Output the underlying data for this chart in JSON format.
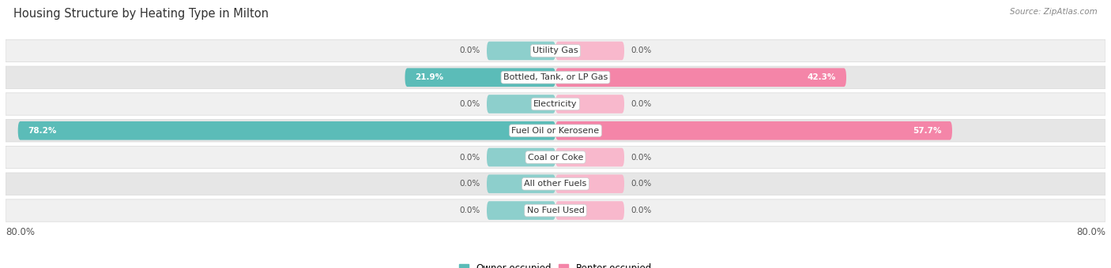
{
  "title": "Housing Structure by Heating Type in Milton",
  "source": "Source: ZipAtlas.com",
  "categories": [
    "Utility Gas",
    "Bottled, Tank, or LP Gas",
    "Electricity",
    "Fuel Oil or Kerosene",
    "Coal or Coke",
    "All other Fuels",
    "No Fuel Used"
  ],
  "owner_values": [
    0.0,
    21.9,
    0.0,
    78.2,
    0.0,
    0.0,
    0.0
  ],
  "renter_values": [
    0.0,
    42.3,
    0.0,
    57.7,
    0.0,
    0.0,
    0.0
  ],
  "owner_color": "#5bbcb8",
  "renter_color": "#f485a8",
  "stub_owner_color": "#8dcfcc",
  "stub_renter_color": "#f8b8cc",
  "row_bg_even": "#f0f0f0",
  "row_bg_odd": "#e6e6e6",
  "row_border": "#d8d8d8",
  "xlim": 80.0,
  "stub_size": 10.0,
  "title_fontsize": 10.5,
  "source_fontsize": 7.5,
  "category_fontsize": 8.0,
  "value_fontsize": 7.5,
  "axis_label_fontsize": 8.5,
  "legend_fontsize": 8.5,
  "figsize": [
    14.06,
    3.4
  ],
  "dpi": 100
}
